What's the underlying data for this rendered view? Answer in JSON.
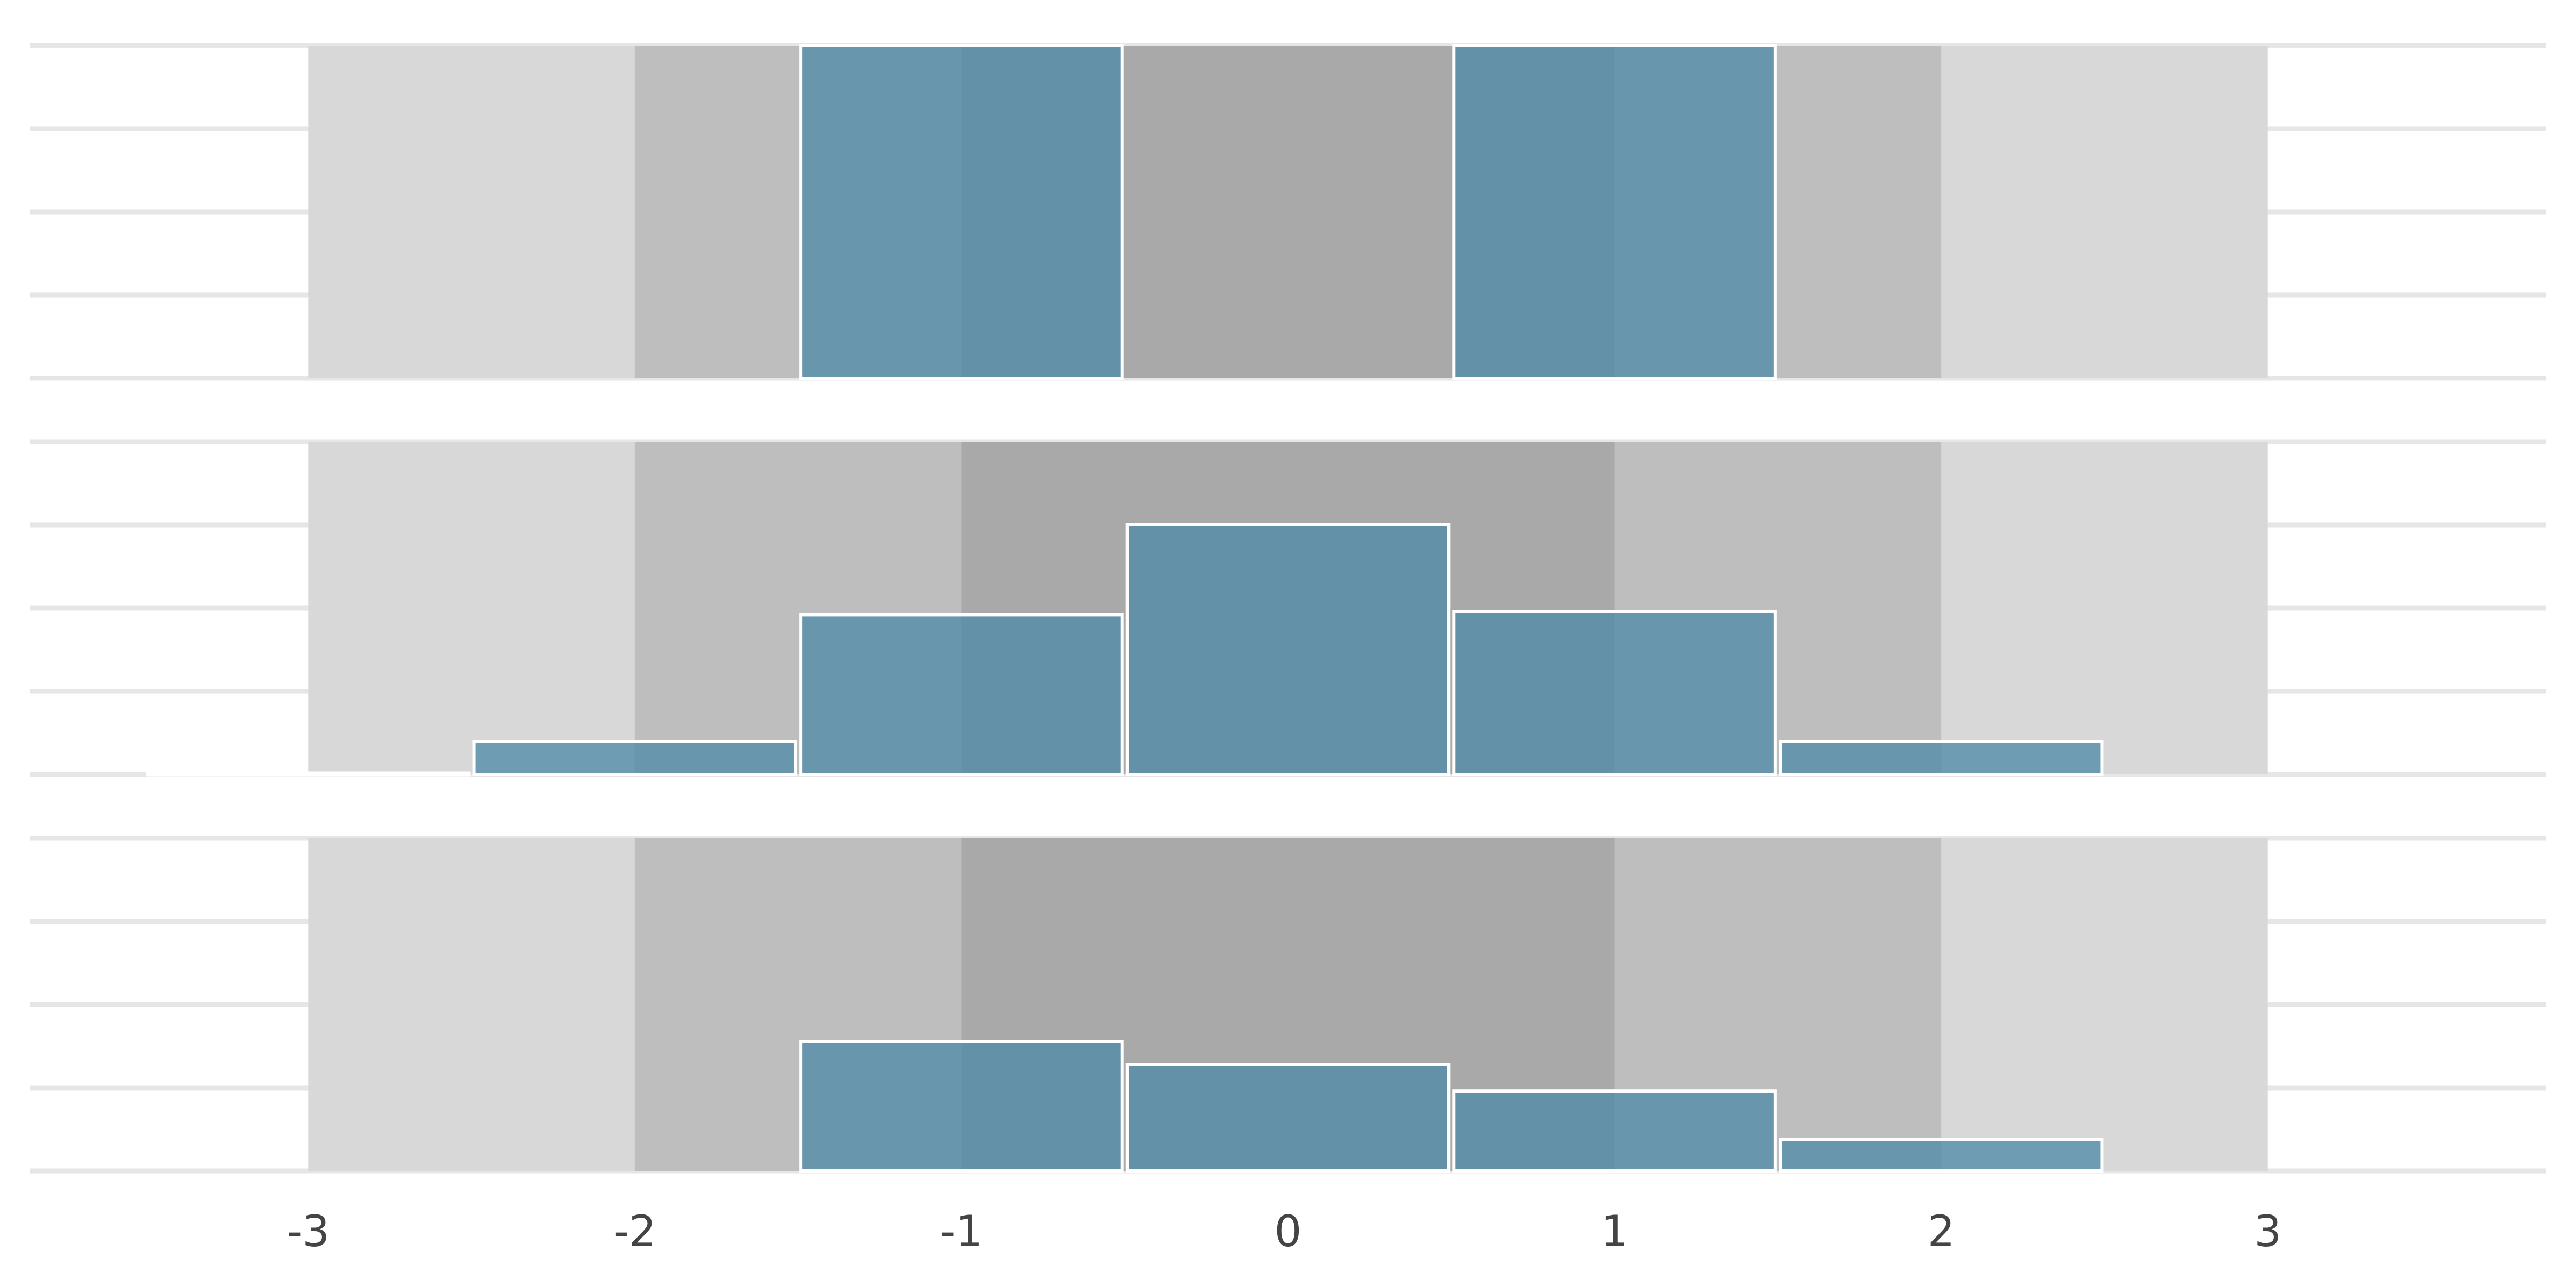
{
  "chart_data": [
    {
      "type": "histogram",
      "bin_width": 1,
      "bins": [
        {
          "x0": -1.5,
          "x1": -0.5,
          "y": 1.0
        },
        {
          "x0": 0.5,
          "x1": 1.5,
          "y": 1.0
        }
      ],
      "ylim": [
        0,
        1.0
      ]
    },
    {
      "type": "histogram",
      "bin_width": 1,
      "bins": [
        {
          "x0": -3.5,
          "x1": -2.5,
          "y": 0.004
        },
        {
          "x0": -2.5,
          "x1": -1.5,
          "y": 0.1
        },
        {
          "x0": -1.5,
          "x1": -0.5,
          "y": 0.48
        },
        {
          "x0": -0.5,
          "x1": 0.5,
          "y": 0.75
        },
        {
          "x0": 0.5,
          "x1": 1.5,
          "y": 0.49
        },
        {
          "x0": 1.5,
          "x1": 2.5,
          "y": 0.1
        }
      ],
      "ylim": [
        0,
        1.0
      ]
    },
    {
      "type": "histogram",
      "bin_width": 1,
      "bins": [
        {
          "x0": -1.5,
          "x1": -0.5,
          "y": 0.39
        },
        {
          "x0": -0.5,
          "x1": 0.5,
          "y": 0.32
        },
        {
          "x0": 0.5,
          "x1": 1.5,
          "y": 0.24
        },
        {
          "x0": 1.5,
          "x1": 2.5,
          "y": 0.095
        }
      ],
      "ylim": [
        0,
        1.0
      ]
    }
  ],
  "x_axis": {
    "range": [
      -3.5,
      3.5
    ],
    "ticks": [
      -3,
      -2,
      -1,
      0,
      1,
      2,
      3
    ],
    "tick_labels": [
      "-3",
      "-2",
      "-1",
      "0",
      "1",
      "2",
      "3"
    ]
  },
  "bands": [
    {
      "from": -3,
      "to": 3,
      "color": "#d8d8d8"
    },
    {
      "from": -2,
      "to": 2,
      "color": "#bebebe"
    },
    {
      "from": -1,
      "to": 1,
      "color": "#a9a9a9"
    }
  ],
  "grid": true,
  "colors": {
    "bar": "#4f8aa8",
    "grid": "#e6e6e6",
    "bar_edge": "#ffffff"
  }
}
